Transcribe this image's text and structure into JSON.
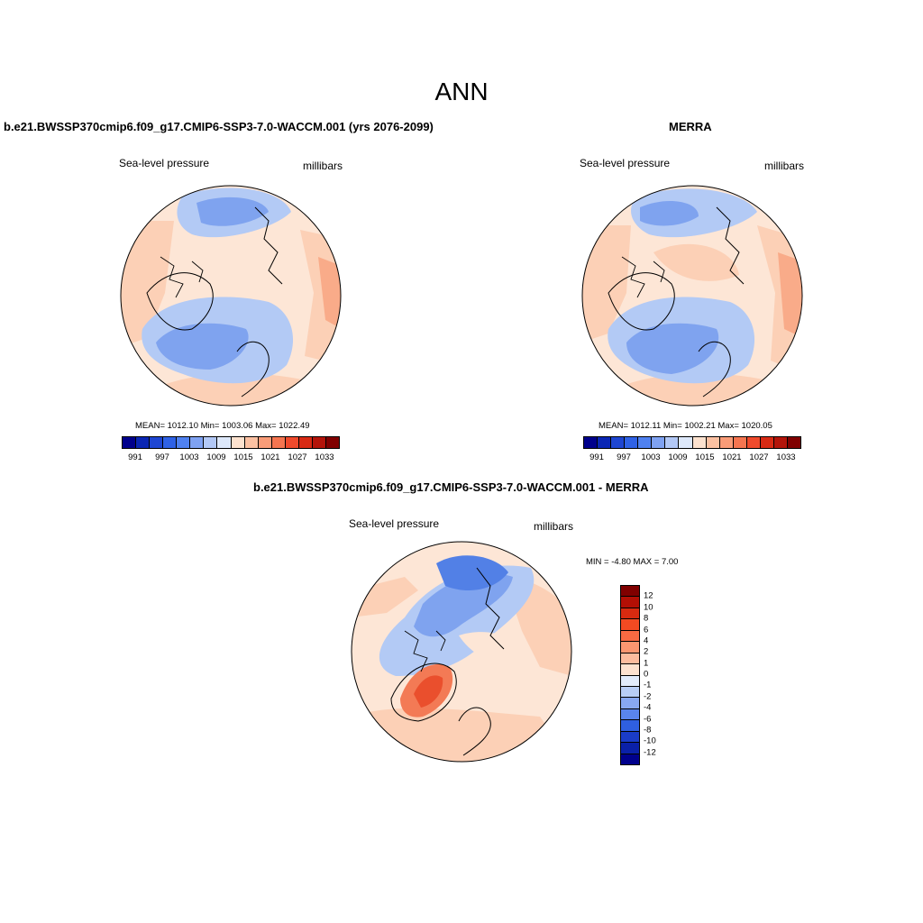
{
  "title": "ANN",
  "panels": [
    {
      "case_title": "b.e21.BWSSP370cmip6.f09_g17.CMIP6-SSP3-7.0-WACCM.001 (yrs 2076-2099)",
      "variable": "Sea-level pressure",
      "units": "millibars",
      "stats": "MEAN= 1012.10  Min= 1003.06  Max= 1022.49",
      "mean": 1012.1,
      "min": 1003.06,
      "max": 1022.49
    },
    {
      "case_title": "MERRA",
      "variable": "Sea-level pressure",
      "units": "millibars",
      "stats": "MEAN= 1012.11  Min= 1002.21  Max= 1020.05",
      "mean": 1012.11,
      "min": 1002.21,
      "max": 1020.05
    }
  ],
  "abs_colorbar": {
    "labels": [
      "991",
      "997",
      "1003",
      "1009",
      "1015",
      "1021",
      "1027",
      "1033"
    ],
    "colors": [
      "#00008c",
      "#0a26b4",
      "#1e46d2",
      "#2f62e6",
      "#4f81f0",
      "#7fa2f2",
      "#b2c8f6",
      "#dde8fa",
      "#fde2cf",
      "#fcc1a2",
      "#f99c78",
      "#f57550",
      "#ef4a2c",
      "#d82a14",
      "#b3140a",
      "#800000"
    ]
  },
  "diff_panel": {
    "case_title": "b.e21.BWSSP370cmip6.f09_g17.CMIP6-SSP3-7.0-WACCM.001 - MERRA",
    "variable": "Sea-level pressure",
    "units": "millibars",
    "stats": "MIN =  -4.80 MAX =   7.00",
    "min": -4.8,
    "max": 7.0
  },
  "diff_colorbar": {
    "labels": [
      "12",
      "10",
      "8",
      "6",
      "4",
      "2",
      "1",
      "0",
      "-1",
      "-2",
      "-4",
      "-6",
      "-8",
      "-10",
      "-12"
    ],
    "colors": [
      "#800000",
      "#b30f05",
      "#d82a10",
      "#f24a22",
      "#f86a42",
      "#fb9670",
      "#fcbc9e",
      "#fde2cf",
      "#e2ecfb",
      "#b8cef6",
      "#88a8f2",
      "#5a85ec",
      "#2f5fe0",
      "#1a3cc8",
      "#0a20a8",
      "#00008c"
    ]
  },
  "map_colors": {
    "ocean_pale": "#fde6d6",
    "light_orange": "#fcd0b6",
    "mid_orange": "#f9ab89",
    "strong_orange": "#f37a55",
    "deep_orange": "#ea4f2d",
    "pale_blue": "#dbe6fa",
    "light_blue": "#b3caf5",
    "mid_blue": "#7fa3ef",
    "deep_blue": "#5280e6",
    "coast": "#000000"
  }
}
